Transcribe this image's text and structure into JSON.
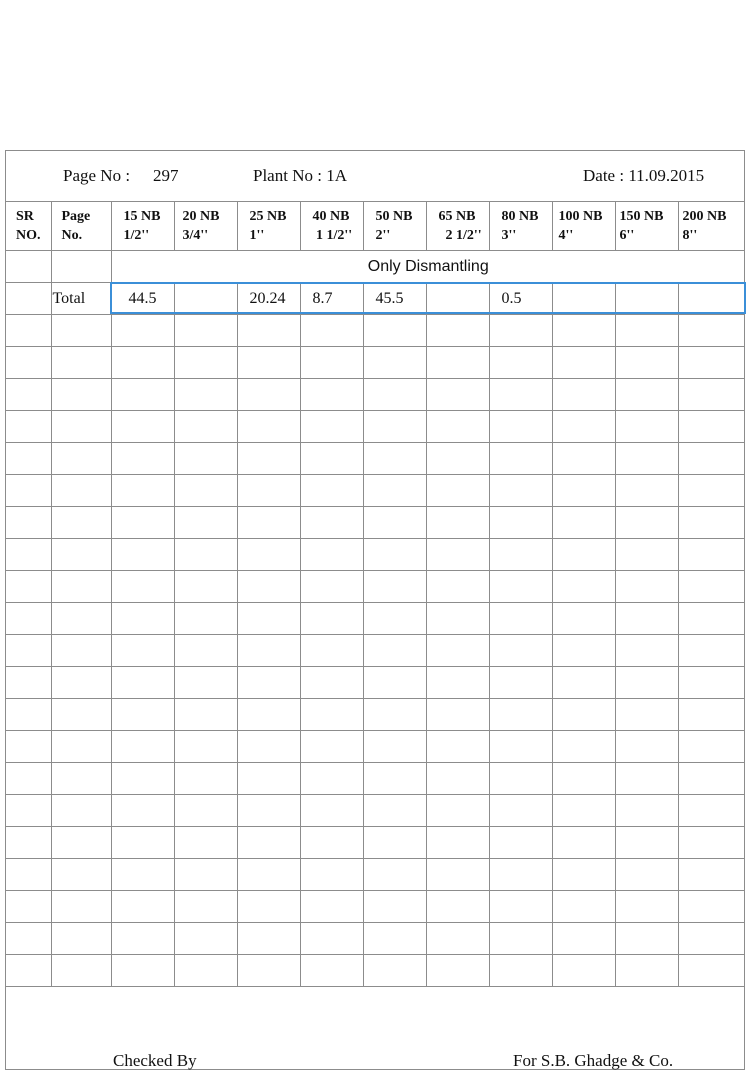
{
  "header": {
    "page_label": "Page No :",
    "page_value": "297",
    "plant": "Plant No : 1A",
    "date": "Date : 11.09.2015"
  },
  "columns": [
    {
      "l1": "SR",
      "l2": "NO."
    },
    {
      "l1": "Page",
      "l2": "No."
    },
    {
      "l1": "15 NB",
      "l2": "1/2''"
    },
    {
      "l1": "20 NB",
      "l2": "3/4''"
    },
    {
      "l1": "25 NB",
      "l2": "1''"
    },
    {
      "l1": "40 NB",
      "l2": " 1 1/2''"
    },
    {
      "l1": "50 NB",
      "l2": "2''"
    },
    {
      "l1": "65 NB",
      "l2": "  2 1/2''"
    },
    {
      "l1": "80 NB",
      "l2": "3''"
    },
    {
      "l1": "100 NB",
      "l2": "4''"
    },
    {
      "l1": "150 NB",
      "l2": "6''"
    },
    {
      "l1": "200 NB",
      "l2": "8''"
    }
  ],
  "note": "Only Dismantling",
  "total": {
    "label": "Total",
    "values": [
      "44.5",
      "",
      "20.24",
      "8.7",
      "45.5",
      "",
      "0.5",
      "",
      "",
      ""
    ]
  },
  "footer": {
    "checked_by": "Checked By",
    "company": "For S.B. Ghadge & Co."
  }
}
